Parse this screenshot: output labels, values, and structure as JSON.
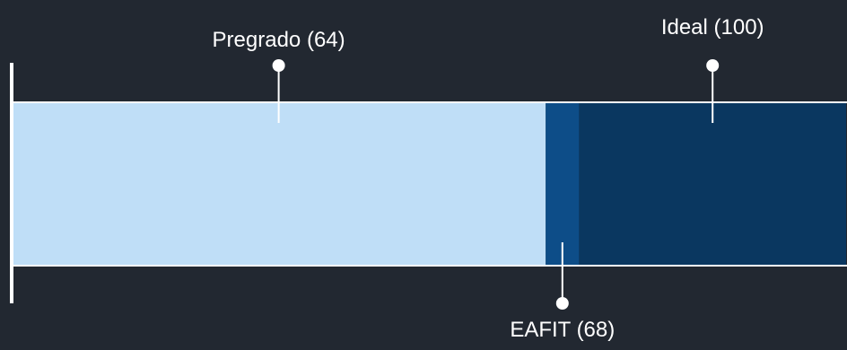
{
  "chart_data": {
    "type": "bar",
    "orientation": "horizontal",
    "stacked": true,
    "xlim": [
      0,
      100
    ],
    "segments": [
      {
        "name": "Pregrado",
        "value": 64,
        "color": "#bfdef7"
      },
      {
        "name": "EAFIT",
        "value": 68,
        "color": "#0d4d88"
      },
      {
        "name": "Ideal",
        "value": 100,
        "color": "#0a3760"
      }
    ],
    "annotations": [
      {
        "series": "Pregrado",
        "text": "Pregrado (64)",
        "position": "top"
      },
      {
        "series": "Ideal",
        "text": "Ideal (100)",
        "position": "top"
      },
      {
        "series": "EAFIT",
        "text": "EAFIT (68)",
        "position": "bottom"
      }
    ]
  },
  "colors": {
    "background": "#222831",
    "line": "#ffffff"
  }
}
